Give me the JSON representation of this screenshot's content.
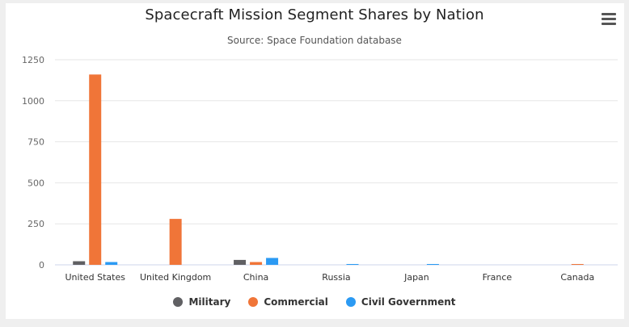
{
  "chart_data": {
    "type": "bar",
    "title": "Spacecraft Mission Segment Shares by Nation",
    "subtitle": "Source: Space Foundation database",
    "categories": [
      "United States",
      "United Kingdom",
      "China",
      "Russia",
      "Japan",
      "France",
      "Canada"
    ],
    "series": [
      {
        "name": "Military",
        "color": "#606063",
        "values": [
          22,
          0,
          30,
          0,
          0,
          0,
          0
        ]
      },
      {
        "name": "Commercial",
        "color": "#f07538",
        "values": [
          1160,
          280,
          17,
          0,
          0,
          0,
          5
        ]
      },
      {
        "name": "Civil Government",
        "color": "#2b9af3",
        "values": [
          17,
          0,
          42,
          5,
          5,
          0,
          0
        ]
      }
    ],
    "ylim": [
      0,
      1250
    ],
    "yticks": [
      0,
      250,
      500,
      750,
      1000,
      1250
    ],
    "grid": true,
    "legend": "bottom-center"
  },
  "menu_icon": "hamburger-menu-icon"
}
